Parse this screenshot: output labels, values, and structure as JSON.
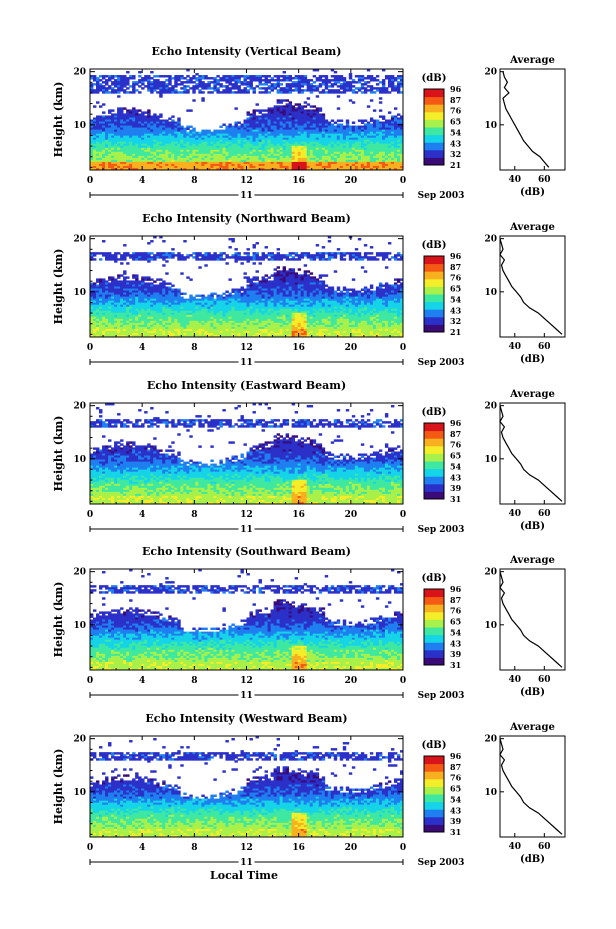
{
  "figure": {
    "xaxis_label": "Local Time",
    "date_label": "Sep 2003",
    "day_label": "11",
    "colorbar_unit": "(dB)",
    "colorbar_ticks": [
      "96",
      "87",
      "76",
      "65",
      "54",
      "43",
      "32",
      "21"
    ],
    "colormap": [
      "#3a0a78",
      "#2a30c8",
      "#1f7ff0",
      "#16d4e8",
      "#3fe8a0",
      "#a8f04a",
      "#f4ee2a",
      "#f8b020",
      "#f45a14",
      "#d8141a"
    ]
  },
  "chart_data": [
    {
      "type": "heatmap",
      "title": "Echo Intensity (Vertical Beam)",
      "ylabel": "Height (km)",
      "xlim": [
        0,
        24
      ],
      "ylim": [
        1.5,
        20.5
      ],
      "xticks": [
        "0",
        "4",
        "8",
        "12",
        "16",
        "20",
        "0"
      ],
      "yticks": [
        "10",
        "20"
      ],
      "colorbar": {
        "label": "(dB)",
        "ticks": [
          "96",
          "87",
          "76",
          "65",
          "54",
          "43",
          "32",
          "21"
        ]
      },
      "profile": {
        "title": "Average",
        "xlabel": "(dB)",
        "xticks": [
          "40",
          "60"
        ],
        "yticks": [
          "10",
          "20"
        ],
        "height_km": [
          2,
          3,
          4,
          5,
          6,
          7,
          8,
          9,
          10,
          11,
          12,
          13,
          14,
          15,
          16,
          17,
          18,
          19,
          20
        ],
        "avg_db": [
          63,
          60,
          57,
          52,
          49,
          46,
          44,
          42,
          40,
          38,
          36,
          34,
          33,
          32,
          36,
          33,
          35,
          33,
          32
        ]
      }
    },
    {
      "type": "heatmap",
      "title": "Echo Intensity (Northward Beam)",
      "ylabel": "Height (km)",
      "xlim": [
        0,
        24
      ],
      "ylim": [
        1.5,
        20.5
      ],
      "xticks": [
        "0",
        "4",
        "8",
        "12",
        "16",
        "20",
        "0"
      ],
      "yticks": [
        "10",
        "20"
      ],
      "colorbar": {
        "label": "(dB)",
        "ticks": [
          "96",
          "87",
          "76",
          "65",
          "54",
          "43",
          "32",
          "21"
        ]
      },
      "profile": {
        "title": "Average",
        "xlabel": "(dB)",
        "xticks": [
          "40",
          "60"
        ],
        "yticks": [
          "10",
          "20"
        ],
        "height_km": [
          2,
          3,
          4,
          5,
          6,
          7,
          8,
          9,
          10,
          11,
          12,
          13,
          14,
          15,
          16,
          17,
          18,
          19,
          20
        ],
        "avg_db": [
          72,
          68,
          64,
          60,
          56,
          50,
          46,
          44,
          41,
          38,
          36,
          34,
          32,
          31,
          33,
          30,
          32,
          31,
          30
        ]
      }
    },
    {
      "type": "heatmap",
      "title": "Echo Intensity (Eastward Beam)",
      "ylabel": "Height (km)",
      "xlim": [
        0,
        24
      ],
      "ylim": [
        1.5,
        20.5
      ],
      "xticks": [
        "0",
        "4",
        "8",
        "12",
        "16",
        "20",
        "0"
      ],
      "yticks": [
        "10",
        "20"
      ],
      "colorbar": {
        "label": "(dB)",
        "ticks": [
          "96",
          "87",
          "76",
          "65",
          "54",
          "43",
          "39",
          "31"
        ]
      },
      "profile": {
        "title": "Average",
        "xlabel": "(dB)",
        "xticks": [
          "40",
          "60"
        ],
        "yticks": [
          "10",
          "20"
        ],
        "height_km": [
          2,
          3,
          4,
          5,
          6,
          7,
          8,
          9,
          10,
          11,
          12,
          13,
          14,
          15,
          16,
          17,
          18,
          19,
          20
        ],
        "avg_db": [
          72,
          68,
          64,
          60,
          56,
          50,
          46,
          44,
          41,
          38,
          36,
          34,
          32,
          31,
          33,
          30,
          32,
          31,
          30
        ]
      }
    },
    {
      "type": "heatmap",
      "title": "Echo Intensity (Southward Beam)",
      "ylabel": "Height (km)",
      "xlim": [
        0,
        24
      ],
      "ylim": [
        1.5,
        20.5
      ],
      "xticks": [
        "0",
        "4",
        "8",
        "12",
        "16",
        "20",
        "0"
      ],
      "yticks": [
        "10",
        "20"
      ],
      "colorbar": {
        "label": "(dB)",
        "ticks": [
          "96",
          "87",
          "76",
          "65",
          "54",
          "43",
          "39",
          "31"
        ]
      },
      "profile": {
        "title": "Average",
        "xlabel": "(dB)",
        "xticks": [
          "40",
          "60"
        ],
        "yticks": [
          "10",
          "20"
        ],
        "height_km": [
          2,
          3,
          4,
          5,
          6,
          7,
          8,
          9,
          10,
          11,
          12,
          13,
          14,
          15,
          16,
          17,
          18,
          19,
          20
        ],
        "avg_db": [
          72,
          68,
          64,
          60,
          56,
          50,
          46,
          44,
          41,
          38,
          36,
          34,
          32,
          31,
          33,
          30,
          32,
          31,
          30
        ]
      }
    },
    {
      "type": "heatmap",
      "title": "Echo Intensity (Westward Beam)",
      "ylabel": "Height (km)",
      "xlim": [
        0,
        24
      ],
      "ylim": [
        1.5,
        20.5
      ],
      "xticks": [
        "0",
        "4",
        "8",
        "12",
        "16",
        "20",
        "0"
      ],
      "yticks": [
        "10",
        "20"
      ],
      "colorbar": {
        "label": "(dB)",
        "ticks": [
          "96",
          "87",
          "76",
          "65",
          "54",
          "43",
          "39",
          "31"
        ]
      },
      "profile": {
        "title": "Average",
        "xlabel": "(dB)",
        "xticks": [
          "40",
          "60"
        ],
        "yticks": [
          "10",
          "20"
        ],
        "height_km": [
          2,
          3,
          4,
          5,
          6,
          7,
          8,
          9,
          10,
          11,
          12,
          13,
          14,
          15,
          16,
          17,
          18,
          19,
          20
        ],
        "avg_db": [
          72,
          68,
          64,
          60,
          56,
          50,
          46,
          44,
          41,
          38,
          36,
          34,
          32,
          31,
          33,
          30,
          32,
          31,
          30
        ]
      }
    }
  ]
}
